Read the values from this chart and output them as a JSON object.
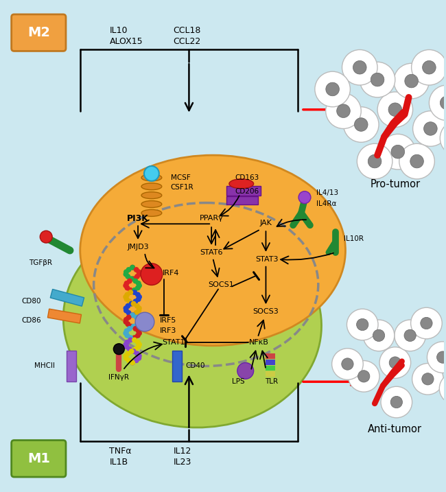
{
  "background_color": "#cce8f0",
  "m2_label": "M2",
  "m1_label": "M1",
  "m2_box_color": "#f0a040",
  "m1_box_color": "#90c040",
  "pro_tumor_label": "Pro-tumor",
  "anti_tumor_label": "Anti-tumor",
  "macrophage_orange_color": "#f0a840",
  "macrophage_green_color": "#a8cc50",
  "cell_fc": "white",
  "cell_ec": "#bbbbbb",
  "nucleus_fc": "#888888",
  "nucleus_ec": "#666666",
  "vessel_color": "#dd1111"
}
